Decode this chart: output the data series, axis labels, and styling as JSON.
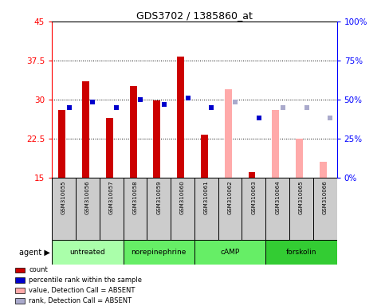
{
  "title": "GDS3702 / 1385860_at",
  "samples": [
    "GSM310055",
    "GSM310056",
    "GSM310057",
    "GSM310058",
    "GSM310059",
    "GSM310060",
    "GSM310061",
    "GSM310062",
    "GSM310063",
    "GSM310064",
    "GSM310065",
    "GSM310066"
  ],
  "count_values": [
    28.0,
    33.5,
    26.5,
    32.5,
    29.8,
    38.2,
    23.2,
    null,
    16.0,
    null,
    null,
    null
  ],
  "rank_values": [
    28.5,
    29.5,
    28.5,
    30.0,
    29.0,
    30.2,
    28.5,
    null,
    26.5,
    null,
    null,
    null
  ],
  "absent_count": [
    null,
    null,
    null,
    null,
    null,
    null,
    null,
    32.0,
    null,
    28.0,
    22.5,
    18.0
  ],
  "absent_rank": [
    null,
    null,
    null,
    null,
    null,
    null,
    null,
    29.5,
    null,
    28.5,
    28.5,
    26.5
  ],
  "ylim_left": [
    15,
    45
  ],
  "ylim_right": [
    0,
    100
  ],
  "yticks_left": [
    15,
    22.5,
    30,
    37.5,
    45
  ],
  "yticks_right": [
    0,
    25,
    50,
    75,
    100
  ],
  "ytick_labels_left": [
    "15",
    "22.5",
    "30",
    "37.5",
    "45"
  ],
  "ytick_labels_right": [
    "0%",
    "25%",
    "50%",
    "75%",
    "100%"
  ],
  "count_color": "#cc0000",
  "rank_color": "#0000cc",
  "absent_count_color": "#ffaaaa",
  "absent_rank_color": "#aaaacc",
  "group_defs": [
    {
      "label": "untreated",
      "start": 0,
      "end": 3,
      "color": "#aaffaa"
    },
    {
      "label": "norepinephrine",
      "start": 3,
      "end": 6,
      "color": "#66ee66"
    },
    {
      "label": "cAMP",
      "start": 6,
      "end": 9,
      "color": "#66ee66"
    },
    {
      "label": "forskolin",
      "start": 9,
      "end": 12,
      "color": "#33cc33"
    }
  ],
  "legend_items": [
    {
      "color": "#cc0000",
      "label": "count"
    },
    {
      "color": "#0000cc",
      "label": "percentile rank within the sample"
    },
    {
      "color": "#ffaaaa",
      "label": "value, Detection Call = ABSENT"
    },
    {
      "color": "#aaaacc",
      "label": "rank, Detection Call = ABSENT"
    }
  ]
}
